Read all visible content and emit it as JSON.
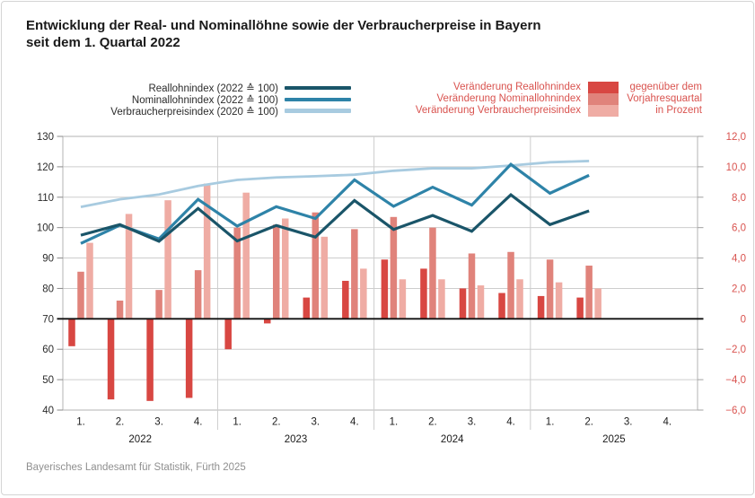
{
  "title": {
    "line1": "Entwicklung der Real- und Nominallöhne sowie der Verbraucherpreise in Bayern",
    "line2": "seit dem 1. Quartal 2022"
  },
  "footer": "Bayerisches Landesamt für Statistik, Fürth 2025",
  "colors": {
    "real_line": "#1a5569",
    "nominal_line": "#2e83a8",
    "vpi_line": "#a8cbe0",
    "real_bar": "#d84742",
    "nominal_bar": "#e0837b",
    "vpi_bar": "#efaca4",
    "right_axis_text": "#d9534f",
    "grid": "#cdcdcd",
    "axis_border": "#b3b3b3",
    "zero_line": "#111111",
    "axis_text": "#2b2b2b"
  },
  "legend_lines": [
    {
      "label": "Reallohnindex (2022 ≙ 100)",
      "color": "#1a5569"
    },
    {
      "label": "Nominallohnindex (2022 ≙ 100)",
      "color": "#2e83a8"
    },
    {
      "label": "Verbraucherpreisindex (2020 ≙ 100)",
      "color": "#a8cbe0"
    }
  ],
  "legend_bars": {
    "items": [
      {
        "label": "Veränderung Reallohnindex",
        "color": "#d84742"
      },
      {
        "label": "Veränderung Nominallohnindex",
        "color": "#e0837b"
      },
      {
        "label": "Veränderung Verbraucherpreisindex",
        "color": "#efaca4"
      }
    ],
    "note_line1": "gegenüber dem",
    "note_line2": "Vorjahresquartal",
    "note_line3": "in Prozent"
  },
  "chart_data": {
    "type": "line+bar combo (indices as lines on left axis, year-over-year changes as bars on right axis)",
    "quarters": [
      "Q1 2022",
      "Q2 2022",
      "Q3 2022",
      "Q4 2022",
      "Q1 2023",
      "Q2 2023",
      "Q3 2023",
      "Q4 2023",
      "Q1 2024",
      "Q2 2024",
      "Q3 2024",
      "Q4 2024",
      "Q1 2025",
      "Q2 2025"
    ],
    "x_axis": {
      "quarter_labels": [
        "1.",
        "2.",
        "3.",
        "4."
      ],
      "years": [
        "2022",
        "2023",
        "2024",
        "2025"
      ],
      "total_slots": 16,
      "note": "Q3 and Q4 2025 shown on axis without data"
    },
    "left_axis": {
      "min": 40,
      "max": 130,
      "step": 10,
      "ticks": [
        "130",
        "120",
        "110",
        "100",
        "90",
        "80",
        "70",
        "60",
        "50",
        "40"
      ]
    },
    "right_axis": {
      "min": -6.0,
      "max": 12.0,
      "step": 2.0,
      "ticks": [
        "12,0",
        "10,0",
        "8,0",
        "6,0",
        "4,0",
        "2,0",
        "0",
        "−2,0",
        "−4,0",
        "−6,0"
      ],
      "unit": "Prozent",
      "baseline_left_value": 70
    },
    "line_series": [
      {
        "name": "Reallohnindex (2022 ≙ 100)",
        "color": "#1a5569",
        "width": 3.2,
        "values": [
          97.5,
          101.0,
          95.5,
          106.3,
          95.6,
          100.7,
          96.9,
          108.9,
          99.4,
          104.0,
          98.8,
          110.8,
          101.0,
          105.5
        ]
      },
      {
        "name": "Nominallohnindex (2022 ≙ 100)",
        "color": "#2e83a8",
        "width": 3.2,
        "values": [
          94.8,
          100.8,
          96.3,
          109.3,
          100.5,
          106.9,
          103.0,
          115.7,
          107.0,
          113.3,
          107.4,
          120.8,
          111.3,
          117.2
        ]
      },
      {
        "name": "Verbraucherpreisindex (2020 ≙ 100)",
        "color": "#a8cbe0",
        "width": 2.8,
        "values": [
          106.8,
          109.3,
          110.9,
          113.7,
          115.7,
          116.5,
          116.9,
          117.4,
          118.7,
          119.5,
          119.5,
          120.4,
          121.5,
          121.9
        ]
      }
    ],
    "bar_series": [
      {
        "name": "Veränderung Reallohnindex",
        "color": "#d84742",
        "values": [
          -1.8,
          -5.3,
          -5.4,
          -5.2,
          -2.0,
          -0.3,
          1.4,
          2.5,
          3.9,
          3.3,
          2.0,
          1.7,
          1.5,
          1.4
        ]
      },
      {
        "name": "Veränderung Nominallohnindex",
        "color": "#e0837b",
        "values": [
          3.1,
          1.2,
          1.9,
          3.2,
          6.0,
          6.2,
          7.0,
          5.9,
          6.7,
          6.0,
          4.3,
          4.4,
          3.9,
          3.5
        ]
      },
      {
        "name": "Veränderung Verbraucherpreisindex",
        "color": "#efaca4",
        "values": [
          5.0,
          6.9,
          7.8,
          8.9,
          8.3,
          6.6,
          5.4,
          3.3,
          2.6,
          2.6,
          2.2,
          2.6,
          2.4,
          2.0
        ]
      }
    ],
    "grid": true,
    "legend_position": "top"
  }
}
